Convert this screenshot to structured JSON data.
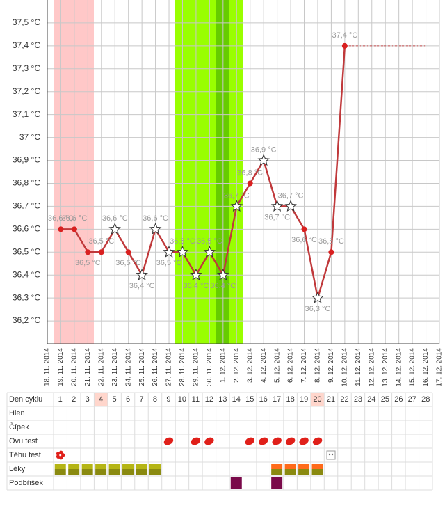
{
  "chart_data": {
    "type": "line",
    "categories": [
      "18. 11. 2014",
      "19. 11. 2014",
      "20. 11. 2014",
      "21. 11. 2014",
      "22. 11. 2014",
      "23. 11. 2014",
      "24. 11. 2014",
      "25. 11. 2014",
      "26. 11. 2014",
      "27. 11. 2014",
      "28. 11. 2014",
      "29. 11. 2014",
      "30. 11. 2014",
      "1. 12. 2014",
      "2. 12. 2014",
      "3. 12. 2014",
      "4. 12. 2014",
      "5. 12. 2014",
      "6. 12. 2014",
      "7. 12. 2014",
      "8. 12. 2014",
      "9. 12. 2014",
      "10. 12. 2014",
      "11. 12. 2014",
      "12. 12. 2014",
      "13. 12. 2014",
      "14. 12. 2014",
      "15. 12. 2014",
      "16. 12. 2014",
      "17. 12. 2014"
    ],
    "values": [
      null,
      36.6,
      36.6,
      36.5,
      36.5,
      36.6,
      36.5,
      36.4,
      36.6,
      36.5,
      36.5,
      36.4,
      36.5,
      36.4,
      36.7,
      36.8,
      36.9,
      36.7,
      36.7,
      36.6,
      36.3,
      36.5,
      37.4,
      null,
      null,
      null,
      null,
      null,
      null,
      null
    ],
    "value_labels": [
      null,
      "36,6 °C",
      "36,6 °C",
      "36,5 °C",
      "36,5 °C",
      "36,6 °C",
      "36,5 °C",
      "36,4 °C",
      "36,6 °C",
      "36,5 °C",
      "36,5 °C",
      "36,4 °C",
      "36,5 °C",
      "36,4 °C",
      "36,7 °C",
      "36,8 °C",
      "36,9 °C",
      "36,7 °C",
      "36,7 °C",
      "36,6 °C",
      "36,3 °C",
      "36,5 °C",
      "37,4 °C",
      null,
      null,
      null,
      null,
      null,
      null,
      null
    ],
    "markers": [
      null,
      "dot",
      "dot",
      "dot",
      "dot",
      "star",
      "dot",
      "star",
      "star",
      "star",
      "star",
      "star",
      "star",
      "star",
      "star",
      "dot",
      "star",
      "star",
      "star",
      "dot",
      "star",
      "dot",
      "dot",
      null,
      null,
      null,
      null,
      null,
      null,
      null
    ],
    "color": "#c0393b",
    "ylim": [
      36.1,
      37.6
    ],
    "yticks": [
      {
        "value": 36.2,
        "label": "36,2 °C"
      },
      {
        "value": 36.3,
        "label": "36,3 °C"
      },
      {
        "value": 36.4,
        "label": "36,4 °C"
      },
      {
        "value": 36.5,
        "label": "36,5 °C"
      },
      {
        "value": 36.6,
        "label": "36,6 °C"
      },
      {
        "value": 36.7,
        "label": "36,7 °C"
      },
      {
        "value": 36.8,
        "label": "36,8 °C"
      },
      {
        "value": 36.9,
        "label": "36,9 °C"
      },
      {
        "value": 37,
        "label": "37 °C"
      },
      {
        "value": 37.1,
        "label": "37,1 °C"
      },
      {
        "value": 37.2,
        "label": "37,2 °C"
      },
      {
        "value": 37.3,
        "label": "37,3 °C"
      },
      {
        "value": 37.4,
        "label": "37,4 °C"
      },
      {
        "value": 37.5,
        "label": "37,5 °C"
      }
    ],
    "grid": true
  },
  "table": {
    "header_label": "Den cyklu",
    "days": [
      1,
      2,
      3,
      4,
      5,
      6,
      7,
      8,
      9,
      10,
      11,
      12,
      13,
      14,
      15,
      16,
      17,
      18,
      19,
      20,
      21,
      22,
      23,
      24,
      25,
      26,
      27,
      28
    ],
    "highlight_days": [
      4,
      20
    ],
    "rows": [
      {
        "label": "Hlen",
        "days": [],
        "icons": []
      },
      {
        "label": "Čípek",
        "days": [],
        "icons": []
      },
      {
        "label": "Ovu test",
        "days": [
          9,
          11,
          12,
          15,
          16,
          17,
          18,
          19,
          20
        ],
        "icons": [
          "drop",
          "drop",
          "drop",
          "drop",
          "drop",
          "drop",
          "drop",
          "drop",
          "drop"
        ]
      },
      {
        "label": "Těhu test",
        "days": [
          1,
          21
        ],
        "icons": [
          "flower",
          "test"
        ]
      },
      {
        "label": "Léky",
        "days": [
          1,
          2,
          3,
          4,
          5,
          6,
          7,
          8,
          17,
          18,
          19,
          20
        ],
        "icons": [
          "pill",
          "pill",
          "pill",
          "pill",
          "pill",
          "pill",
          "pill",
          "pill",
          "pill-orange",
          "pill-orange",
          "pill-orange",
          "pill-orange"
        ]
      },
      {
        "label": "Podbřišek",
        "days": [
          14,
          17
        ],
        "icons": [
          "square",
          "square"
        ]
      }
    ]
  }
}
